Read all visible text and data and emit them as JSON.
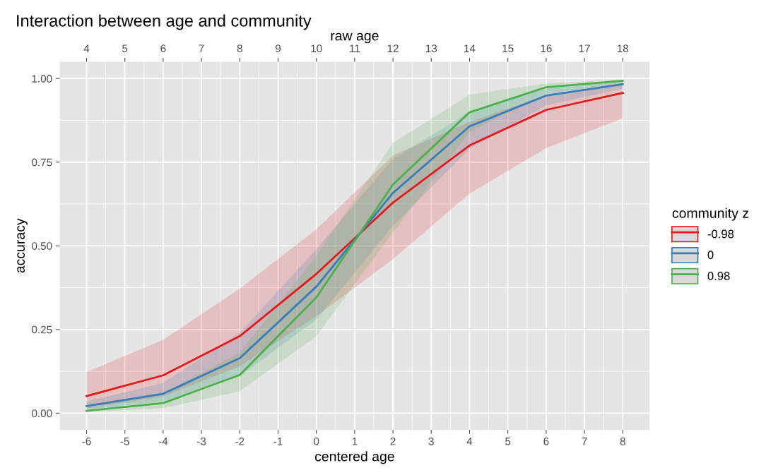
{
  "chart_data": {
    "type": "line",
    "title": "Interaction between age and community",
    "xlabel": "centered age",
    "ylabel": "accuracy",
    "x2label": "raw age",
    "legend_title": "community z",
    "x": [
      -6,
      -4,
      -2,
      0,
      2,
      4,
      6,
      8
    ],
    "series": [
      {
        "name": "-0.98",
        "color": "#e41a1c",
        "values": [
          0.051,
          0.113,
          0.23,
          0.416,
          0.629,
          0.8,
          0.906,
          0.957
        ],
        "lower": [
          0.014,
          0.05,
          0.14,
          0.29,
          0.46,
          0.656,
          0.792,
          0.881
        ],
        "upper": [
          0.123,
          0.219,
          0.372,
          0.549,
          0.77,
          0.87,
          0.95,
          0.985
        ]
      },
      {
        "name": "0",
        "color": "#377eb8",
        "values": [
          0.021,
          0.058,
          0.164,
          0.378,
          0.658,
          0.857,
          0.949,
          0.983
        ],
        "lower": [
          0.01,
          0.035,
          0.11,
          0.28,
          0.56,
          0.79,
          0.92,
          0.97
        ],
        "upper": [
          0.035,
          0.09,
          0.24,
          0.49,
          0.76,
          0.9,
          0.97,
          0.99
        ]
      },
      {
        "name": "0.98",
        "color": "#4daf4a",
        "values": [
          0.007,
          0.03,
          0.114,
          0.346,
          0.683,
          0.899,
          0.974,
          0.993
        ],
        "lower": [
          0.003,
          0.015,
          0.065,
          0.23,
          0.54,
          0.84,
          0.955,
          0.985
        ],
        "upper": [
          0.015,
          0.06,
          0.18,
          0.47,
          0.807,
          0.952,
          0.985,
          0.997
        ]
      }
    ],
    "xlim": [
      -6.7,
      8.7
    ],
    "xticks": [
      -6,
      -5,
      -4,
      -3,
      -2,
      -1,
      0,
      1,
      2,
      3,
      4,
      5,
      6,
      7,
      8
    ],
    "x2lim": [
      3.3,
      18.7
    ],
    "x2ticks": [
      4,
      5,
      6,
      7,
      8,
      9,
      10,
      11,
      12,
      13,
      14,
      15,
      16,
      17,
      18
    ],
    "ylim": [
      -0.05,
      1.05
    ],
    "yticks": [
      {
        "value": 0,
        "label": "0.00"
      },
      {
        "value": 0.25,
        "label": "0.25"
      },
      {
        "value": 0.5,
        "label": "0.50"
      },
      {
        "value": 0.75,
        "label": "0.75"
      },
      {
        "value": 1,
        "label": "1.00"
      }
    ],
    "grid": true,
    "legend": "right"
  }
}
